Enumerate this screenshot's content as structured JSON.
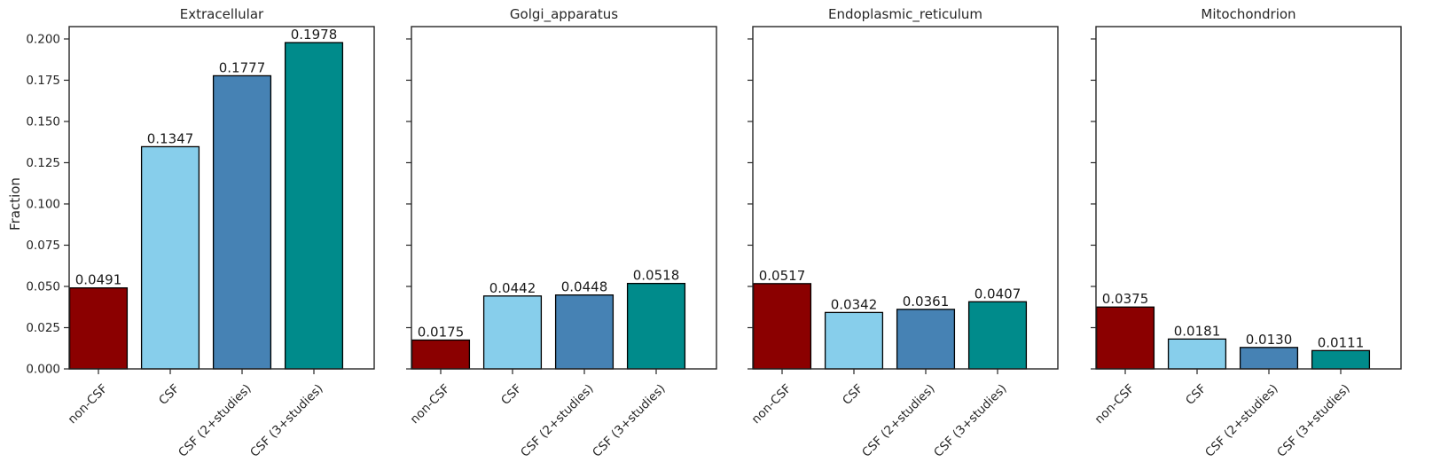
{
  "chart_data": {
    "type": "bar",
    "ylabel": "Fraction",
    "ylim": [
      0,
      0.2075
    ],
    "yticks": [
      0.0,
      0.025,
      0.05,
      0.075,
      0.1,
      0.125,
      0.15,
      0.175,
      0.2
    ],
    "ytick_labels": [
      "0.000",
      "0.025",
      "0.050",
      "0.075",
      "0.100",
      "0.125",
      "0.150",
      "0.175",
      "0.200"
    ],
    "categories": [
      "non-CSF",
      "CSF",
      "CSF (2+studies)",
      "CSF (3+studies)"
    ],
    "colors": [
      "#8b0000",
      "#87ceeb",
      "#4682b4",
      "#008b8b"
    ],
    "edge_color": "#000000",
    "panels": [
      {
        "title": "Extracellular",
        "values": [
          0.0491,
          0.1347,
          0.1777,
          0.1978
        ],
        "value_labels": [
          "0.0491",
          "0.1347",
          "0.1777",
          "0.1978"
        ]
      },
      {
        "title": "Golgi_apparatus",
        "values": [
          0.0175,
          0.0442,
          0.0448,
          0.0518
        ],
        "value_labels": [
          "0.0175",
          "0.0442",
          "0.0448",
          "0.0518"
        ]
      },
      {
        "title": "Endoplasmic_reticulum",
        "values": [
          0.0517,
          0.0342,
          0.0361,
          0.0407
        ],
        "value_labels": [
          "0.0517",
          "0.0342",
          "0.0361",
          "0.0407"
        ]
      },
      {
        "title": "Mitochondrion",
        "values": [
          0.0375,
          0.0181,
          0.013,
          0.0111
        ],
        "value_labels": [
          "0.0375",
          "0.0181",
          "0.0130",
          "0.0111"
        ]
      }
    ]
  }
}
